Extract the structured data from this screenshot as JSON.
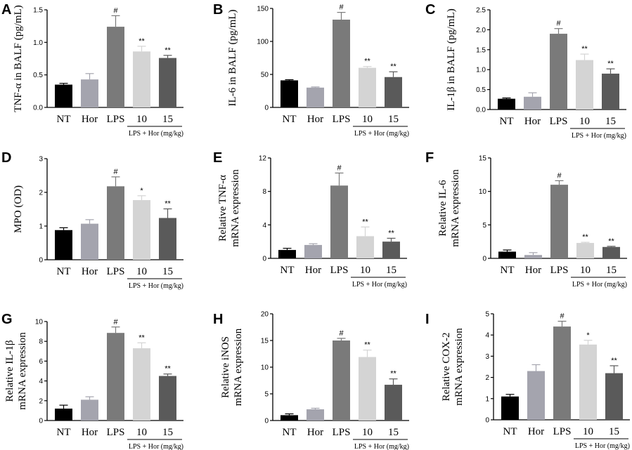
{
  "figure": {
    "bar_colors": [
      "#000000",
      "#a4a4ae",
      "#7a7a7a",
      "#d4d4d4",
      "#5a5a5a"
    ],
    "group_label": "LPS + Hor (mg/kg)"
  },
  "chart_data": [
    {
      "type": "bar",
      "panel": "A",
      "ylabel_lines": [
        "TNF-α in BALF (pg/mL)"
      ],
      "categories": [
        "NT",
        "Hor",
        "LPS",
        "10",
        "15"
      ],
      "values": [
        0.35,
        0.43,
        1.24,
        0.86,
        0.76
      ],
      "errors": [
        0.02,
        0.09,
        0.17,
        0.08,
        0.04
      ],
      "annotations": [
        "",
        "",
        "#",
        "**",
        "**"
      ],
      "ylim": [
        0,
        1.5
      ],
      "yticks": [
        "0.0",
        "0.5",
        "1.0",
        "1.5"
      ],
      "ytick_values": [
        0,
        0.5,
        1.0,
        1.5
      ]
    },
    {
      "type": "bar",
      "panel": "B",
      "ylabel_lines": [
        "IL-6 in BALF (pg/mL)"
      ],
      "categories": [
        "NT",
        "Hor",
        "LPS",
        "10",
        "15"
      ],
      "values": [
        41,
        30,
        133,
        60,
        46
      ],
      "errors": [
        1,
        1,
        11,
        2,
        8
      ],
      "annotations": [
        "",
        "",
        "#",
        "**",
        "**"
      ],
      "ylim": [
        0,
        150
      ],
      "yticks": [
        "0",
        "50",
        "100",
        "150"
      ],
      "ytick_values": [
        0,
        50,
        100,
        150
      ]
    },
    {
      "type": "bar",
      "panel": "C",
      "ylabel_lines": [
        "IL-1β in BALF (pg/mL)"
      ],
      "categories": [
        "NT",
        "Hor",
        "LPS",
        "10",
        "15"
      ],
      "values": [
        0.27,
        0.32,
        1.9,
        1.24,
        0.9
      ],
      "errors": [
        0.02,
        0.1,
        0.13,
        0.15,
        0.12
      ],
      "annotations": [
        "",
        "",
        "#",
        "**",
        "**"
      ],
      "ylim": [
        0,
        2.5
      ],
      "yticks": [
        "0.0",
        "0.5",
        "1.0",
        "1.5",
        "2.0",
        "2.5"
      ],
      "ytick_values": [
        0,
        0.5,
        1.0,
        1.5,
        2.0,
        2.5
      ]
    },
    {
      "type": "bar",
      "panel": "D",
      "ylabel_lines": [
        "MPO (OD)"
      ],
      "categories": [
        "NT",
        "Hor",
        "LPS",
        "10",
        "15"
      ],
      "values": [
        0.88,
        1.07,
        2.18,
        1.77,
        1.24
      ],
      "errors": [
        0.07,
        0.12,
        0.28,
        0.13,
        0.27
      ],
      "annotations": [
        "",
        "",
        "#",
        "*",
        "**"
      ],
      "ylim": [
        0,
        3
      ],
      "yticks": [
        "0",
        "1",
        "2",
        "3"
      ],
      "ytick_values": [
        0,
        1,
        2,
        3
      ]
    },
    {
      "type": "bar",
      "panel": "E",
      "ylabel_lines": [
        "Relative TNF-α",
        "mRNA expression"
      ],
      "categories": [
        "NT",
        "Hor",
        "LPS",
        "10",
        "15"
      ],
      "values": [
        1.0,
        1.6,
        8.7,
        2.65,
        2.0
      ],
      "errors": [
        0.2,
        0.15,
        1.5,
        1.1,
        0.4
      ],
      "annotations": [
        "",
        "",
        "#",
        "**",
        "**"
      ],
      "ylim": [
        0,
        12
      ],
      "yticks": [
        "0",
        "4",
        "8",
        "12"
      ],
      "ytick_values": [
        0,
        4,
        8,
        12
      ]
    },
    {
      "type": "bar",
      "panel": "F",
      "ylabel_lines": [
        "Relative IL-6",
        "mRNA expression"
      ],
      "categories": [
        "NT",
        "Hor",
        "LPS",
        "10",
        "15"
      ],
      "values": [
        1.0,
        0.5,
        11.0,
        2.3,
        1.7
      ],
      "errors": [
        0.25,
        0.35,
        0.6,
        0.1,
        0.1
      ],
      "annotations": [
        "",
        "",
        "#",
        "**",
        "**"
      ],
      "ylim": [
        0,
        15
      ],
      "yticks": [
        "0",
        "5",
        "10",
        "15"
      ],
      "ytick_values": [
        0,
        5,
        10,
        15
      ]
    },
    {
      "type": "bar",
      "panel": "G",
      "ylabel_lines": [
        "Relative IL-1β",
        "mRNA expression"
      ],
      "categories": [
        "NT",
        "Hor",
        "LPS",
        "10",
        "15"
      ],
      "values": [
        1.2,
        2.1,
        8.85,
        7.3,
        4.5
      ],
      "errors": [
        0.35,
        0.3,
        0.6,
        0.55,
        0.2
      ],
      "annotations": [
        "",
        "",
        "#",
        "**",
        "**"
      ],
      "ylim": [
        0,
        10
      ],
      "yticks": [
        "0",
        "2",
        "4",
        "6",
        "8",
        "10"
      ],
      "ytick_values": [
        0,
        2,
        4,
        6,
        8,
        10
      ]
    },
    {
      "type": "bar",
      "panel": "H",
      "ylabel_lines": [
        "Relative iNOS",
        "mRNA expression"
      ],
      "categories": [
        "NT",
        "Hor",
        "LPS",
        "10",
        "15"
      ],
      "values": [
        1.0,
        2.1,
        15.0,
        11.9,
        6.7
      ],
      "errors": [
        0.25,
        0.2,
        0.4,
        1.3,
        1.1
      ],
      "annotations": [
        "",
        "",
        "#",
        "**",
        "**"
      ],
      "ylim": [
        0,
        20
      ],
      "yticks": [
        "0",
        "5",
        "10",
        "15",
        "20"
      ],
      "ytick_values": [
        0,
        5,
        10,
        15,
        20
      ]
    },
    {
      "type": "bar",
      "panel": "I",
      "ylabel_lines": [
        "Relative COX-2",
        "mRNA expression"
      ],
      "categories": [
        "NT",
        "Hor",
        "LPS",
        "10",
        "15"
      ],
      "values": [
        1.1,
        2.3,
        4.4,
        3.55,
        2.2
      ],
      "errors": [
        0.1,
        0.3,
        0.25,
        0.2,
        0.35
      ],
      "annotations": [
        "",
        "",
        "#",
        "*",
        "**"
      ],
      "ylim": [
        0,
        5
      ],
      "yticks": [
        "0",
        "1",
        "2",
        "3",
        "4",
        "5"
      ],
      "ytick_values": [
        0,
        1,
        2,
        3,
        4,
        5
      ]
    }
  ]
}
